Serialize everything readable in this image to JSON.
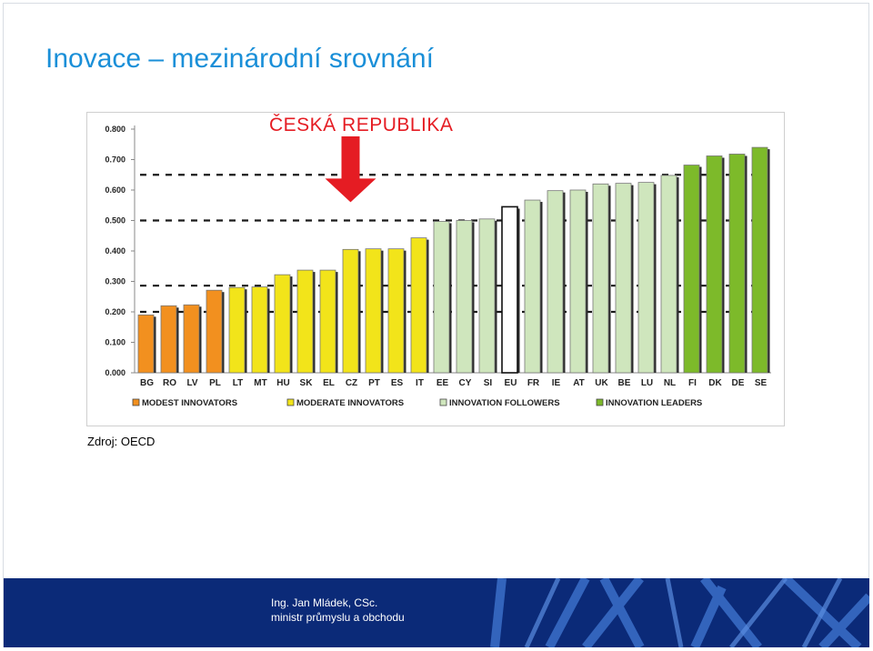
{
  "slide": {
    "title": "Inovace – mezinárodní srovnání",
    "highlight_label": "ČESKÁ REPUBLIKA",
    "source": "Zdroj: OECD"
  },
  "footer": {
    "line1": "Ing. Jan Mládek, CSc.",
    "line2": "ministr průmyslu a obchodu",
    "background_color": "#0b2a78"
  },
  "chart_data": {
    "type": "bar",
    "ylim": [
      0,
      0.8
    ],
    "yticks": [
      "0.000",
      "0.100",
      "0.200",
      "0.300",
      "0.400",
      "0.500",
      "0.600",
      "0.700",
      "0.800"
    ],
    "ytick_values": [
      0,
      0.1,
      0.2,
      0.3,
      0.4,
      0.5,
      0.6,
      0.7,
      0.8
    ],
    "grid": false,
    "categories": [
      "BG",
      "RO",
      "LV",
      "PL",
      "LT",
      "MT",
      "HU",
      "SK",
      "EL",
      "CZ",
      "PT",
      "ES",
      "IT",
      "EE",
      "CY",
      "SI",
      "EU",
      "FR",
      "IE",
      "AT",
      "UK",
      "BE",
      "LU",
      "NL",
      "FI",
      "DK",
      "DE",
      "SE"
    ],
    "values": [
      0.19,
      0.22,
      0.223,
      0.271,
      0.28,
      0.282,
      0.322,
      0.337,
      0.337,
      0.405,
      0.407,
      0.407,
      0.443,
      0.497,
      0.5,
      0.505,
      0.545,
      0.567,
      0.598,
      0.6,
      0.62,
      0.622,
      0.625,
      0.648,
      0.682,
      0.712,
      0.718,
      0.74
    ],
    "groups": [
      "modest",
      "modest",
      "modest",
      "modest",
      "moderate",
      "moderate",
      "moderate",
      "moderate",
      "moderate",
      "moderate",
      "moderate",
      "moderate",
      "moderate",
      "followers",
      "followers",
      "followers",
      "eu",
      "followers",
      "followers",
      "followers",
      "followers",
      "followers",
      "followers",
      "followers",
      "leaders",
      "leaders",
      "leaders",
      "leaders"
    ],
    "group_colors": {
      "modest": "#f2901f",
      "moderate": "#f2e41a",
      "followers": "#cfe6bd",
      "eu": "#ffffff",
      "leaders": "#7dba2a"
    },
    "thresholds": [
      0.2,
      0.286,
      0.5,
      0.65
    ],
    "legend": [
      {
        "label": "MODEST INNOVATORS",
        "color": "#f2901f"
      },
      {
        "label": "MODERATE INNOVATORS",
        "color": "#f2e41a"
      },
      {
        "label": "INNOVATION FOLLOWERS",
        "color": "#cfe6bd"
      },
      {
        "label": "INNOVATION LEADERS",
        "color": "#7dba2a"
      }
    ],
    "legend_position": "bottom",
    "highlight_category": "CZ",
    "highlight_color": "#e51c23"
  }
}
